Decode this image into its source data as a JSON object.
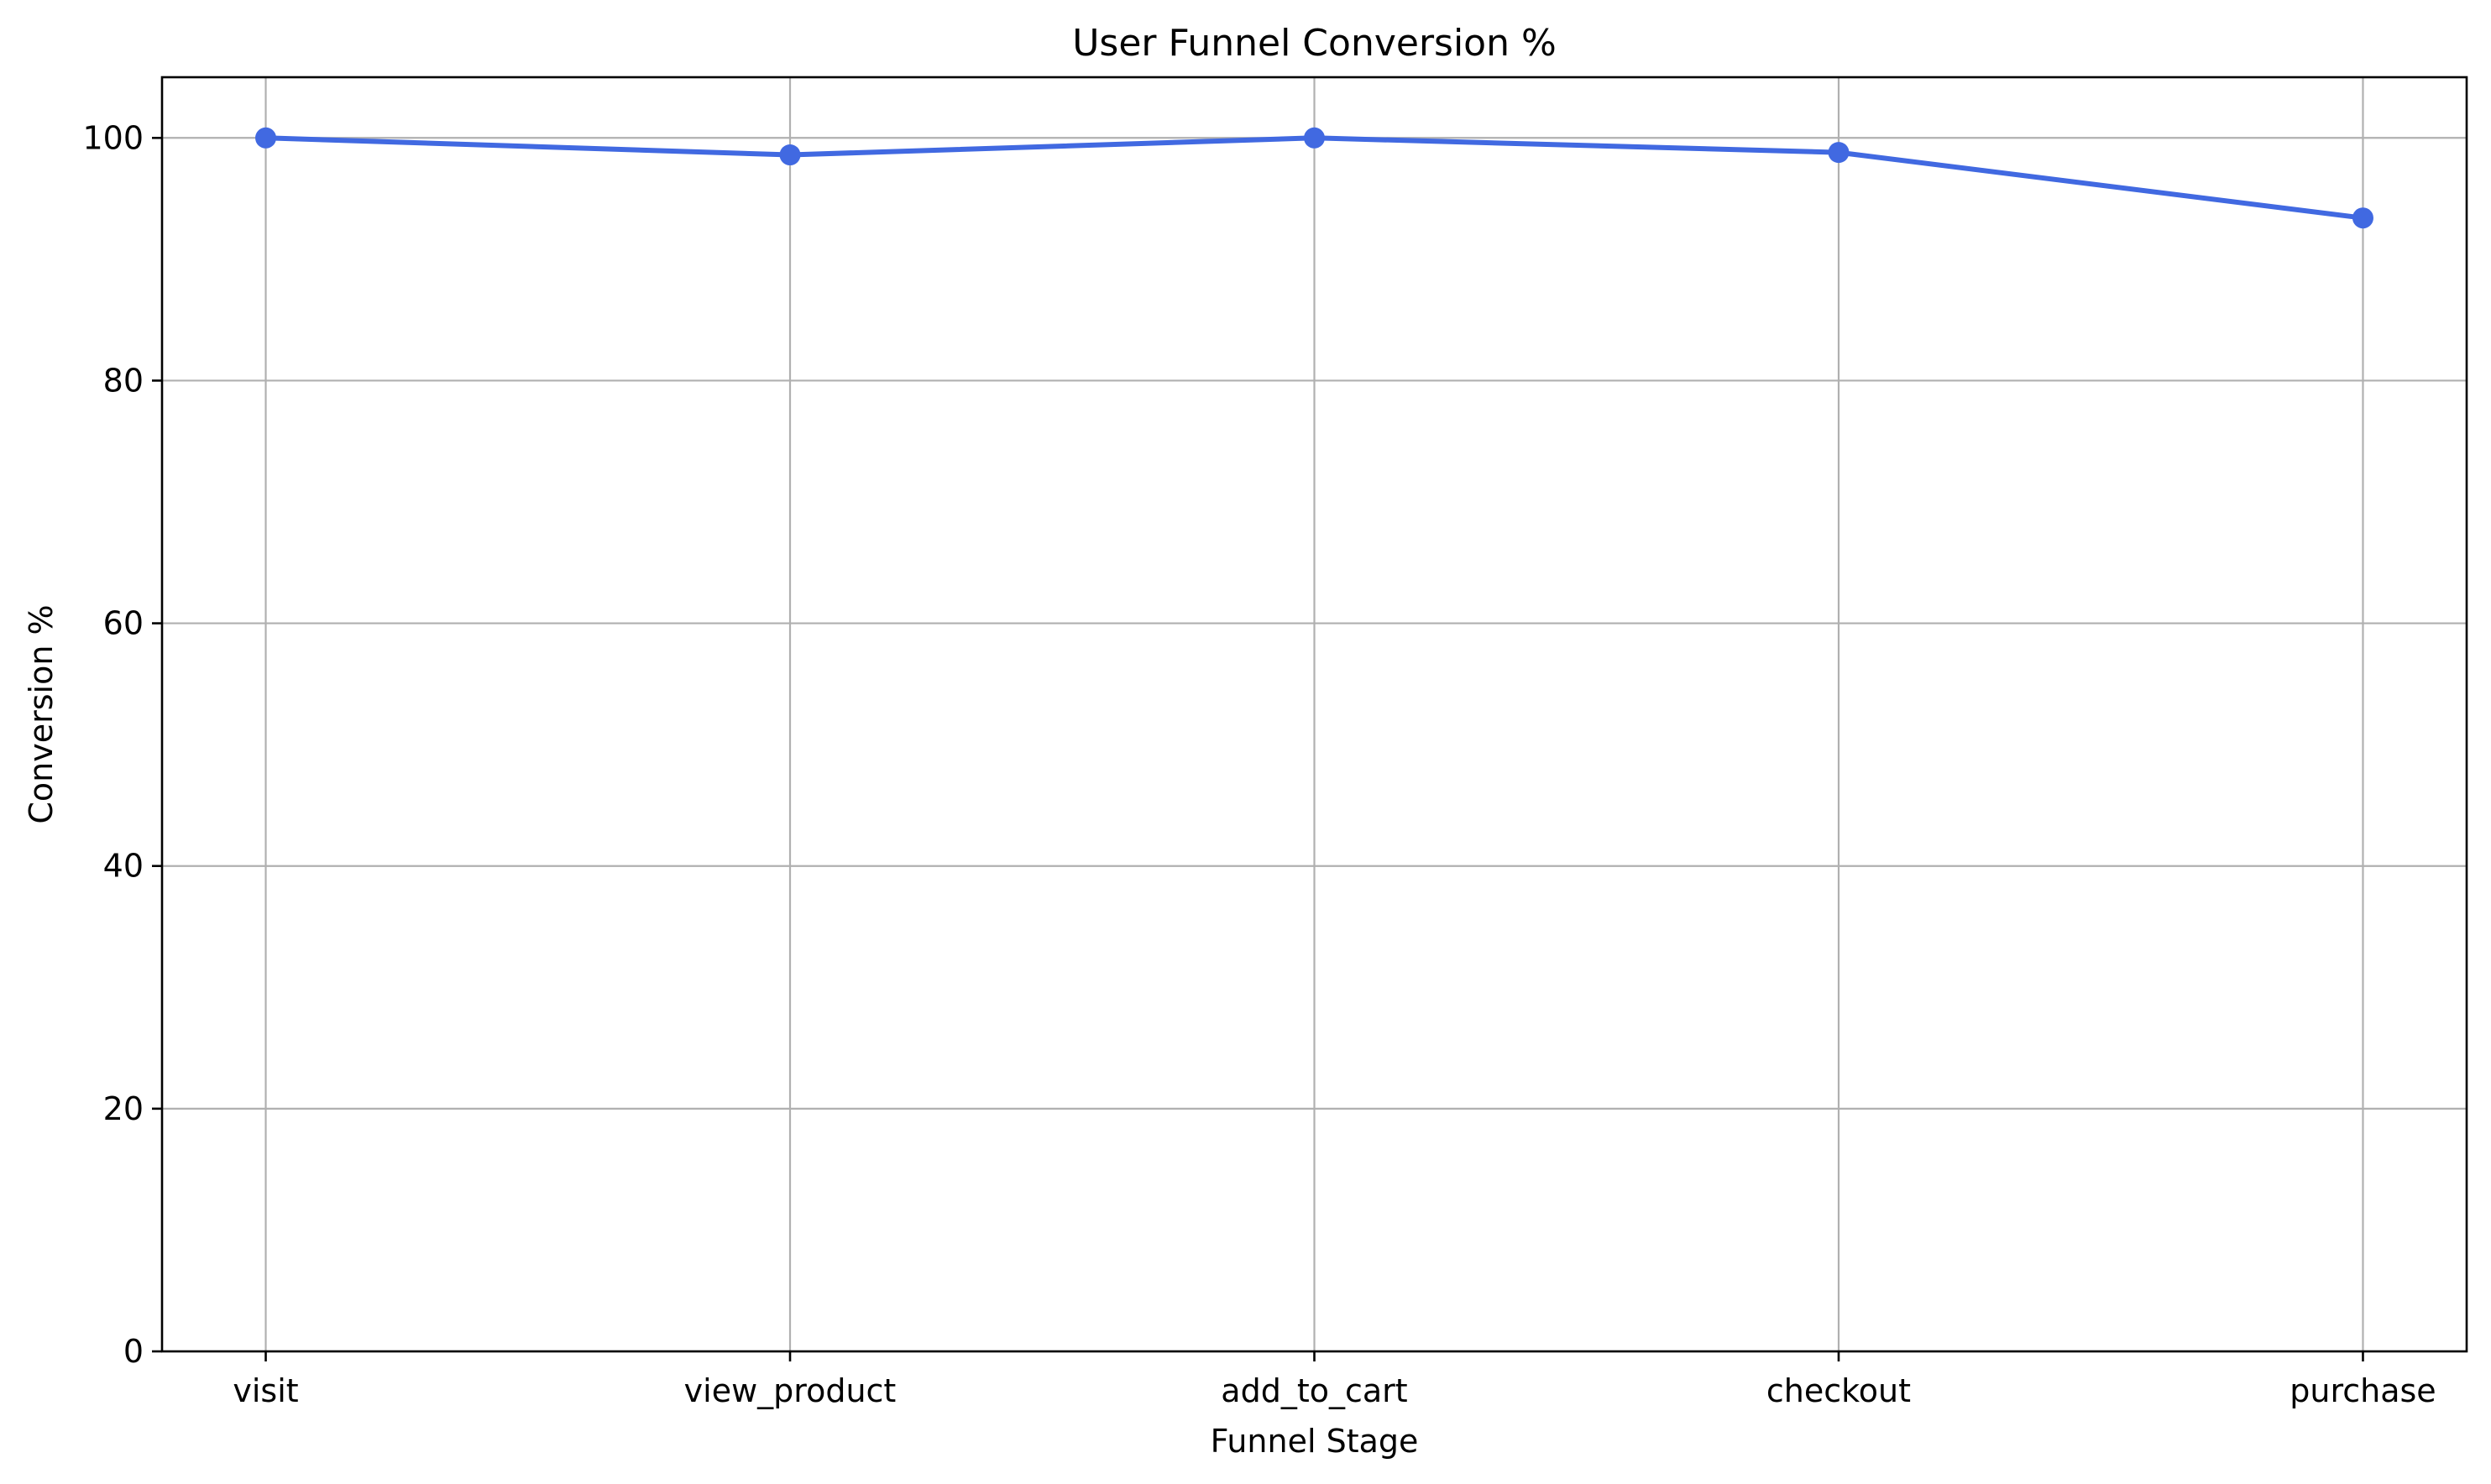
{
  "chart_data": {
    "type": "line",
    "title": "User Funnel Conversion %",
    "xlabel": "Funnel Stage",
    "ylabel": "Conversion %",
    "categories": [
      "visit",
      "view_product",
      "add_to_cart",
      "checkout",
      "purchase"
    ],
    "series": [
      {
        "values": [
          100,
          98.6,
          100,
          98.8,
          93.4
        ],
        "color": "#4169e1"
      }
    ],
    "ylim": [
      0,
      105
    ],
    "yticks": [
      0,
      20,
      40,
      60,
      80,
      100
    ],
    "grid": true,
    "legend": "none"
  }
}
